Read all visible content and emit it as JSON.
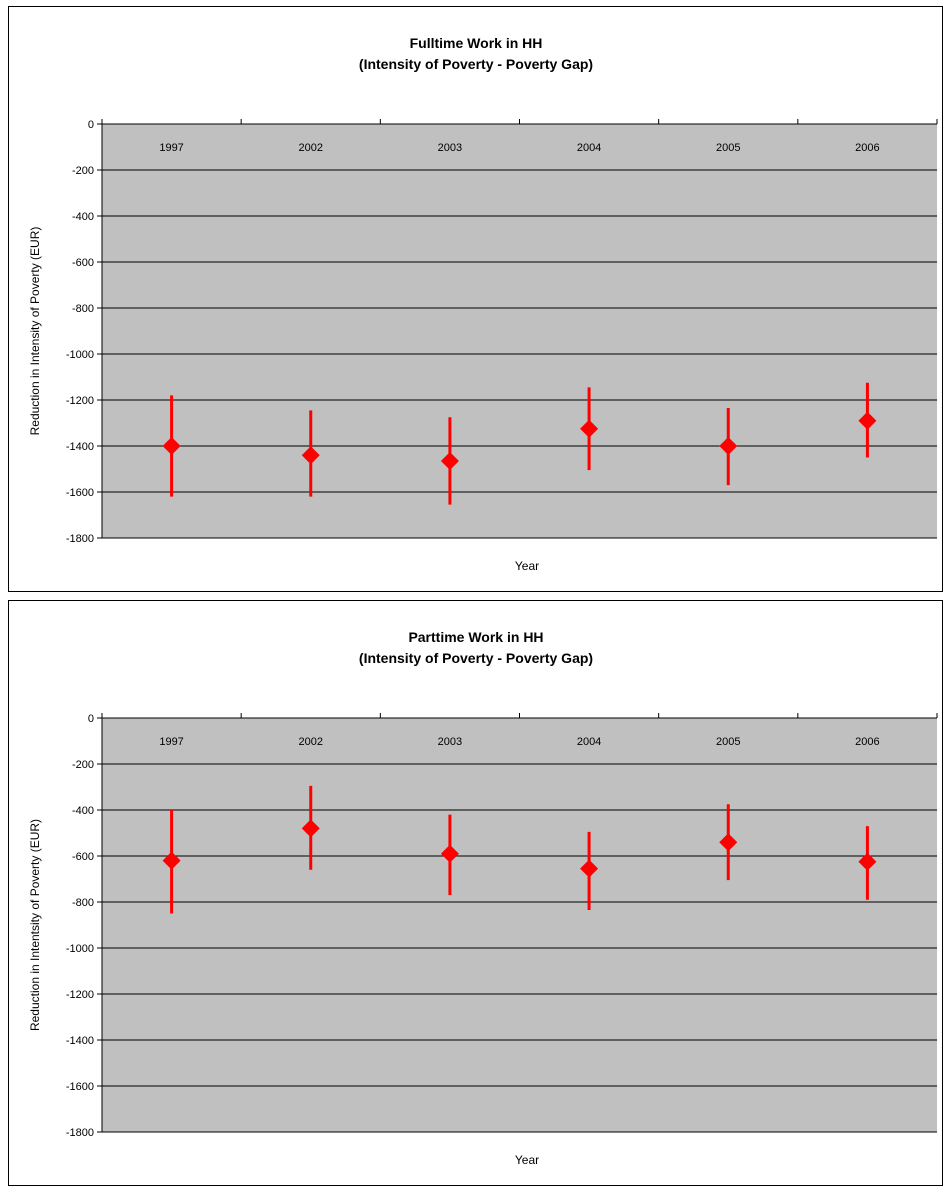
{
  "chart_data": [
    {
      "type": "scatter",
      "title": "Fulltime Work in HH",
      "subtitle": "(Intensity of Poverty - Poverty Gap)",
      "xlabel": "Year",
      "ylabel": "Reduction in Intensity of Poverty (EUR)",
      "categories": [
        "1997",
        "2002",
        "2003",
        "2004",
        "2005",
        "2006"
      ],
      "values": [
        -1400,
        -1440,
        -1465,
        -1325,
        -1400,
        -1290
      ],
      "err_high": [
        -1180,
        -1245,
        -1275,
        -1145,
        -1235,
        -1125
      ],
      "err_low": [
        -1620,
        -1620,
        -1655,
        -1505,
        -1570,
        -1450
      ],
      "yticks": [
        0,
        -200,
        -400,
        -600,
        -800,
        -1000,
        -1200,
        -1400,
        -1600,
        -1800
      ],
      "ylim": [
        -1800,
        0
      ],
      "grid": true,
      "plot_color": "#c0c0c0",
      "marker_color": "#ff0000"
    },
    {
      "type": "scatter",
      "title": "Parttime Work in HH",
      "subtitle": "(Intensity of Poverty - Poverty Gap)",
      "xlabel": "Year",
      "ylabel": "Reduction in Intentsity of Poverty (EUR)",
      "categories": [
        "1997",
        "2002",
        "2003",
        "2004",
        "2005",
        "2006"
      ],
      "values": [
        -620,
        -480,
        -590,
        -655,
        -540,
        -625
      ],
      "err_high": [
        -400,
        -295,
        -420,
        -495,
        -375,
        -470
      ],
      "err_low": [
        -850,
        -660,
        -770,
        -835,
        -705,
        -790
      ],
      "yticks": [
        0,
        -200,
        -400,
        -600,
        -800,
        -1000,
        -1200,
        -1400,
        -1600,
        -1800
      ],
      "ylim": [
        -1800,
        0
      ],
      "grid": true,
      "plot_color": "#c0c0c0",
      "marker_color": "#ff0000"
    }
  ]
}
